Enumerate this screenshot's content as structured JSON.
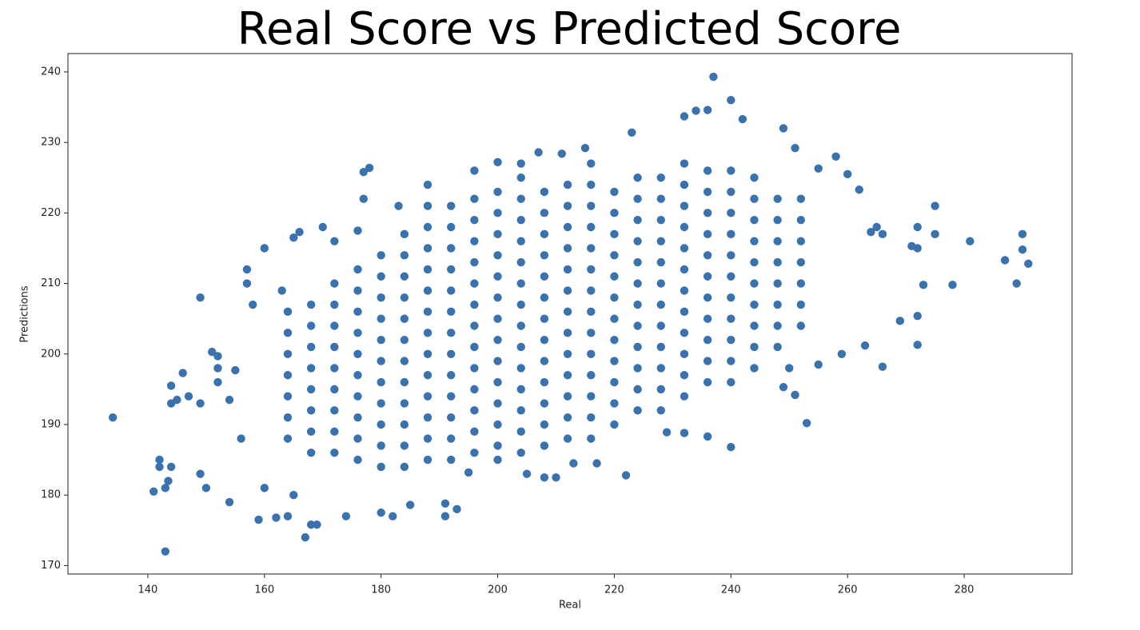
{
  "chart_data": {
    "type": "scatter",
    "title": "Real Score vs Predicted Score",
    "x_label": "Real",
    "y_label": "Predictions",
    "color": "#3a72ae",
    "xlim": [
      126.3,
      298.5
    ],
    "ylim": [
      168.8,
      242.6
    ],
    "xticks": [
      140,
      160,
      180,
      200,
      220,
      240,
      260,
      280
    ],
    "yticks": [
      170,
      180,
      190,
      200,
      210,
      220,
      230,
      240
    ],
    "grid": false,
    "x": [
      134,
      141,
      142,
      142,
      143,
      143,
      143.5,
      144,
      144,
      144,
      145,
      146,
      147,
      149,
      149,
      149,
      150,
      151,
      152,
      152,
      152,
      154,
      154,
      155,
      156,
      157,
      157,
      158,
      159,
      160,
      160,
      162,
      163,
      164,
      165,
      165,
      166,
      167,
      168,
      169,
      170,
      172,
      174,
      176,
      177,
      178,
      177,
      180,
      182,
      183,
      185,
      188,
      191,
      191,
      193,
      196,
      200,
      204,
      207,
      211,
      215,
      223,
      237,
      240,
      242,
      236,
      234,
      232,
      249,
      251,
      258,
      255,
      260,
      262,
      264,
      266,
      265,
      271,
      272,
      275,
      275,
      272,
      273,
      278,
      281,
      287,
      289,
      290,
      290,
      291,
      269,
      272,
      272,
      266,
      263,
      259,
      255,
      253,
      251,
      249,
      250,
      236,
      240,
      232,
      229,
      222,
      217,
      213,
      210,
      208,
      205,
      200,
      195,
      164,
      164,
      164,
      164,
      164,
      164,
      164,
      168,
      168,
      168,
      168,
      168,
      168,
      168,
      168,
      172,
      172,
      172,
      172,
      172,
      172,
      172,
      172,
      172,
      176,
      176,
      176,
      176,
      176,
      176,
      176,
      176,
      176,
      176,
      180,
      180,
      180,
      180,
      180,
      180,
      180,
      180,
      180,
      180,
      180,
      184,
      184,
      184,
      184,
      184,
      184,
      184,
      184,
      184,
      184,
      184,
      184,
      188,
      188,
      188,
      188,
      188,
      188,
      188,
      188,
      188,
      188,
      188,
      188,
      188,
      192,
      192,
      192,
      192,
      192,
      192,
      192,
      192,
      192,
      192,
      192,
      192,
      192,
      196,
      196,
      196,
      196,
      196,
      196,
      196,
      196,
      196,
      196,
      196,
      196,
      196,
      200,
      200,
      200,
      200,
      200,
      200,
      200,
      200,
      200,
      200,
      200,
      200,
      200,
      204,
      204,
      204,
      204,
      204,
      204,
      204,
      204,
      204,
      204,
      204,
      204,
      204,
      204,
      208,
      208,
      208,
      208,
      208,
      208,
      208,
      208,
      208,
      208,
      208,
      208,
      208,
      212,
      212,
      212,
      212,
      212,
      212,
      212,
      212,
      212,
      212,
      212,
      212,
      212,
      216,
      216,
      216,
      216,
      216,
      216,
      216,
      216,
      216,
      216,
      216,
      216,
      216,
      216,
      220,
      220,
      220,
      220,
      220,
      220,
      220,
      220,
      220,
      220,
      220,
      220,
      224,
      224,
      224,
      224,
      224,
      224,
      224,
      224,
      224,
      224,
      224,
      224,
      228,
      228,
      228,
      228,
      228,
      228,
      228,
      228,
      228,
      228,
      228,
      228,
      232,
      232,
      232,
      232,
      232,
      232,
      232,
      232,
      232,
      232,
      232,
      232,
      236,
      236,
      236,
      236,
      236,
      236,
      236,
      236,
      236,
      236,
      236,
      240,
      240,
      240,
      240,
      240,
      240,
      240,
      240,
      240,
      240,
      240,
      244,
      244,
      244,
      244,
      244,
      244,
      244,
      244,
      244,
      244,
      248,
      248,
      248,
      248,
      248,
      248,
      248,
      248,
      252,
      252,
      252,
      252,
      252,
      252,
      252
    ],
    "values": [
      191,
      180.5,
      185,
      184,
      172,
      181,
      182,
      193,
      195.5,
      184,
      193.5,
      197.3,
      194,
      208,
      183,
      193,
      181,
      200.3,
      199.7,
      198,
      196,
      179,
      193.5,
      197.7,
      188,
      212,
      210,
      207,
      176.5,
      215,
      181,
      176.8,
      209,
      177,
      216.5,
      180,
      217.3,
      174,
      175.8,
      175.8,
      218,
      216,
      177,
      217.5,
      225.8,
      226.4,
      222,
      177.5,
      177,
      221,
      178.6,
      224,
      177,
      178.8,
      178,
      226,
      227.2,
      227,
      228.6,
      228.4,
      229.2,
      231.4,
      239.3,
      236,
      233.3,
      234.6,
      234.5,
      233.7,
      232,
      229.2,
      228,
      226.3,
      225.5,
      223.3,
      217.3,
      217,
      218,
      215.3,
      218,
      221,
      217,
      215,
      209.8,
      209.8,
      216,
      213.3,
      210,
      217,
      214.8,
      212.8,
      204.7,
      205.4,
      201.3,
      198.2,
      201.2,
      200,
      198.5,
      190.2,
      194.2,
      195.3,
      198,
      188.3,
      186.8,
      188.8,
      188.9,
      182.8,
      184.5,
      184.5,
      182.5,
      182.5,
      183,
      185,
      183.2,
      188,
      191,
      194,
      197,
      200,
      203,
      206,
      186,
      189,
      192,
      195,
      198,
      201,
      204,
      207,
      186,
      189,
      192,
      195,
      198,
      201,
      204,
      207,
      210,
      185,
      188,
      191,
      194,
      197,
      200,
      203,
      206,
      209,
      212,
      184,
      187,
      190,
      193,
      196,
      199,
      202,
      205,
      208,
      211,
      214,
      184,
      187,
      190,
      193,
      196,
      199,
      202,
      205,
      208,
      211,
      214,
      217,
      185,
      188,
      191,
      194,
      197,
      200,
      203,
      206,
      209,
      212,
      215,
      218,
      221,
      185,
      188,
      191,
      194,
      197,
      200,
      203,
      206,
      209,
      212,
      215,
      218,
      221,
      186,
      189,
      192,
      195,
      198,
      201,
      204,
      207,
      210,
      213,
      216,
      219,
      222,
      187,
      190,
      193,
      196,
      199,
      202,
      205,
      208,
      211,
      214,
      217,
      220,
      223,
      186,
      189,
      192,
      195,
      198,
      201,
      204,
      207,
      210,
      213,
      216,
      219,
      222,
      225,
      187,
      190,
      193,
      196,
      199,
      202,
      205,
      208,
      211,
      214,
      217,
      220,
      223,
      188,
      191,
      194,
      197,
      200,
      203,
      206,
      209,
      212,
      215,
      218,
      221,
      224,
      188,
      191,
      194,
      197,
      200,
      203,
      206,
      209,
      212,
      215,
      218,
      221,
      224,
      227,
      190,
      193,
      196,
      199,
      202,
      205,
      208,
      211,
      214,
      217,
      220,
      223,
      192,
      195,
      198,
      201,
      204,
      207,
      210,
      213,
      216,
      219,
      222,
      225,
      192,
      195,
      198,
      201,
      204,
      207,
      210,
      213,
      216,
      219,
      222,
      225,
      194,
      197,
      200,
      203,
      206,
      209,
      212,
      215,
      218,
      221,
      224,
      227,
      196,
      199,
      202,
      205,
      208,
      211,
      214,
      217,
      220,
      223,
      226,
      196,
      199,
      202,
      205,
      208,
      211,
      214,
      217,
      220,
      223,
      226,
      198,
      201,
      204,
      207,
      210,
      213,
      216,
      219,
      222,
      225,
      201,
      204,
      207,
      210,
      213,
      216,
      219,
      222,
      204,
      207,
      210,
      213,
      216,
      219,
      222
    ]
  }
}
